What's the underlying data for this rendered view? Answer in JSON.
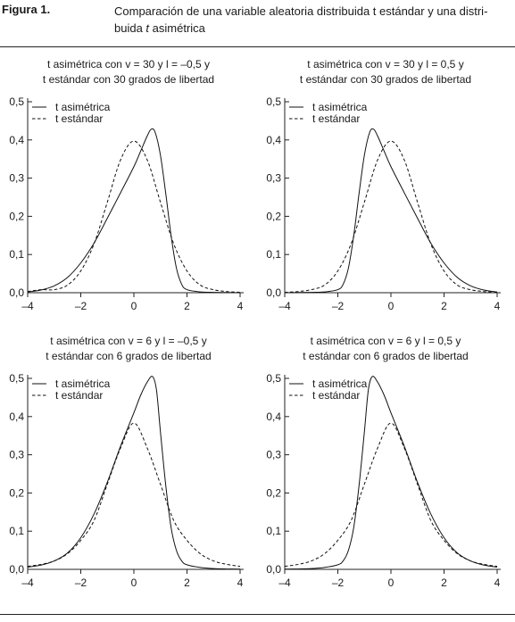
{
  "figure": {
    "label": "Figura 1.",
    "title_line1": "Comparación de una variable aleatoria distribuida t estándar y una distri-",
    "title_line2_a": "buida ",
    "title_line2_b": "t",
    "title_line2_c": " asimétrica"
  },
  "chart_data": [
    {
      "type": "line",
      "title_line1": "t asimétrica con v = 30 y l = –0,5 y",
      "title_line2": "t estándar con 30 grados de libertad",
      "xlim": [
        -4,
        4
      ],
      "ylim": [
        0,
        0.5
      ],
      "xticks": [
        -4,
        -2,
        0,
        2,
        4
      ],
      "xtick_labels": [
        "–4",
        "–2",
        "0",
        "2",
        "4"
      ],
      "yticks": [
        0,
        0.1,
        0.2,
        0.3,
        0.4,
        0.5
      ],
      "ytick_labels": [
        "0,0",
        "0,1",
        "0,2",
        "0,3",
        "0,4",
        "0,5"
      ],
      "legend": "top-left",
      "series": [
        {
          "name": "t asimétrica",
          "style": "solid",
          "x": [
            -4,
            -3.5,
            -3,
            -2.5,
            -2,
            -1.5,
            -1,
            -0.5,
            0,
            0.25,
            0.5,
            0.65,
            0.8,
            1,
            1.2,
            1.4,
            1.6,
            1.8,
            2,
            2.5,
            3,
            3.5,
            4
          ],
          "y": [
            0.002,
            0.007,
            0.018,
            0.04,
            0.078,
            0.13,
            0.195,
            0.262,
            0.33,
            0.37,
            0.41,
            0.428,
            0.42,
            0.36,
            0.26,
            0.15,
            0.065,
            0.022,
            0.008,
            0.002,
            0.001,
            0.0005,
            0
          ]
        },
        {
          "name": "t estándar",
          "style": "dashed",
          "x": [
            -4,
            -3.5,
            -3,
            -2.5,
            -2,
            -1.5,
            -1,
            -0.5,
            0,
            0.5,
            1,
            1.5,
            2,
            2.5,
            3,
            3.5,
            4
          ],
          "y": [
            0.003,
            0.008,
            0.0079,
            0.02,
            0.057,
            0.128,
            0.237,
            0.348,
            0.397,
            0.348,
            0.237,
            0.128,
            0.057,
            0.02,
            0.0079,
            0.003,
            0.001
          ]
        }
      ]
    },
    {
      "type": "line",
      "title_line1": "t asimétrica con v = 30 y l = 0,5 y",
      "title_line2": "t estándar con 30 grados de libertad",
      "xlim": [
        -4,
        4
      ],
      "ylim": [
        0,
        0.5
      ],
      "xticks": [
        -4,
        -2,
        0,
        2,
        4
      ],
      "xtick_labels": [
        "–4",
        "–2",
        "0",
        "2",
        "4"
      ],
      "yticks": [
        0,
        0.1,
        0.2,
        0.3,
        0.4,
        0.5
      ],
      "ytick_labels": [
        "0,0",
        "0,1",
        "0,2",
        "0,3",
        "0,4",
        "0,5"
      ],
      "legend": "top-left",
      "series": [
        {
          "name": "t asimétrica",
          "style": "solid",
          "x": [
            -4,
            -3.5,
            -3,
            -2.5,
            -2,
            -1.8,
            -1.6,
            -1.4,
            -1.2,
            -1,
            -0.8,
            -0.65,
            -0.5,
            -0.25,
            0,
            0.5,
            1,
            1.5,
            2,
            2.5,
            3,
            3.5,
            4
          ],
          "y": [
            0,
            0.0005,
            0.001,
            0.002,
            0.008,
            0.022,
            0.065,
            0.15,
            0.26,
            0.36,
            0.42,
            0.428,
            0.41,
            0.37,
            0.33,
            0.262,
            0.195,
            0.13,
            0.078,
            0.04,
            0.018,
            0.007,
            0.002
          ]
        },
        {
          "name": "t estándar",
          "style": "dashed",
          "x": [
            -4,
            -3.5,
            -3,
            -2.5,
            -2,
            -1.5,
            -1,
            -0.5,
            0,
            0.5,
            1,
            1.5,
            2,
            2.5,
            3,
            3.5,
            4
          ],
          "y": [
            0.001,
            0.003,
            0.0079,
            0.02,
            0.057,
            0.128,
            0.237,
            0.348,
            0.397,
            0.348,
            0.237,
            0.128,
            0.057,
            0.02,
            0.0079,
            0.003,
            0.001
          ]
        }
      ]
    },
    {
      "type": "line",
      "title_line1": "t asimétrica con v = 6 y l = –0,5 y",
      "title_line2": "t estándar con 6 grados de libertad",
      "xlim": [
        -4,
        4
      ],
      "ylim": [
        0,
        0.5
      ],
      "xticks": [
        -4,
        -2,
        0,
        2,
        4
      ],
      "xtick_labels": [
        "–4",
        "–2",
        "0",
        "2",
        "4"
      ],
      "yticks": [
        0,
        0.1,
        0.2,
        0.3,
        0.4,
        0.5
      ],
      "ytick_labels": [
        "0,0",
        "0,1",
        "0,2",
        "0,3",
        "0,4",
        "0,5"
      ],
      "legend": "top-left",
      "series": [
        {
          "name": "t asimétrica",
          "style": "solid",
          "x": [
            -4,
            -3.5,
            -3,
            -2.5,
            -2,
            -1.5,
            -1,
            -0.5,
            0,
            0.25,
            0.5,
            0.7,
            0.85,
            1,
            1.2,
            1.4,
            1.6,
            1.8,
            2,
            2.5,
            3,
            3.5,
            4
          ],
          "y": [
            0.006,
            0.011,
            0.022,
            0.043,
            0.083,
            0.145,
            0.228,
            0.323,
            0.41,
            0.455,
            0.49,
            0.505,
            0.47,
            0.36,
            0.22,
            0.11,
            0.05,
            0.022,
            0.012,
            0.005,
            0.002,
            0.001,
            0.0005
          ]
        },
        {
          "name": "t estándar",
          "style": "dashed",
          "x": [
            -4,
            -3.5,
            -3,
            -2.5,
            -2,
            -1.5,
            -1,
            -0.5,
            0,
            0.5,
            1,
            1.5,
            2,
            2.5,
            3,
            3.5,
            4
          ],
          "y": [
            0.008,
            0.013,
            0.022,
            0.041,
            0.076,
            0.128,
            0.223,
            0.318,
            0.383,
            0.318,
            0.223,
            0.128,
            0.076,
            0.041,
            0.022,
            0.013,
            0.008
          ]
        }
      ]
    },
    {
      "type": "line",
      "title_line1": "t asimétrica con v = 6 y l = 0,5 y",
      "title_line2": "t estándar con 6 grados de libertad",
      "xlim": [
        -4,
        4
      ],
      "ylim": [
        0,
        0.5
      ],
      "xticks": [
        -4,
        -2,
        0,
        2,
        4
      ],
      "xtick_labels": [
        "–4",
        "–2",
        "0",
        "2",
        "4"
      ],
      "yticks": [
        0,
        0.1,
        0.2,
        0.3,
        0.4,
        0.5
      ],
      "ytick_labels": [
        "0,0",
        "0,1",
        "0,2",
        "0,3",
        "0,4",
        "0,5"
      ],
      "legend": "top-left",
      "series": [
        {
          "name": "t asimétrica",
          "style": "solid",
          "x": [
            -4,
            -3.5,
            -3,
            -2.5,
            -2,
            -1.8,
            -1.6,
            -1.4,
            -1.2,
            -1,
            -0.85,
            -0.7,
            -0.5,
            -0.25,
            0,
            0.5,
            1,
            1.5,
            2,
            2.5,
            3,
            3.5,
            4
          ],
          "y": [
            0.0005,
            0.001,
            0.002,
            0.005,
            0.012,
            0.022,
            0.05,
            0.11,
            0.22,
            0.36,
            0.47,
            0.505,
            0.49,
            0.455,
            0.41,
            0.323,
            0.228,
            0.145,
            0.083,
            0.043,
            0.022,
            0.011,
            0.006
          ]
        },
        {
          "name": "t estándar",
          "style": "dashed",
          "x": [
            -4,
            -3.5,
            -3,
            -2.5,
            -2,
            -1.5,
            -1,
            -0.5,
            0,
            0.5,
            1,
            1.5,
            2,
            2.5,
            3,
            3.5,
            4
          ],
          "y": [
            0.008,
            0.013,
            0.022,
            0.041,
            0.076,
            0.128,
            0.223,
            0.318,
            0.383,
            0.318,
            0.223,
            0.128,
            0.076,
            0.041,
            0.022,
            0.013,
            0.008
          ]
        }
      ]
    }
  ]
}
